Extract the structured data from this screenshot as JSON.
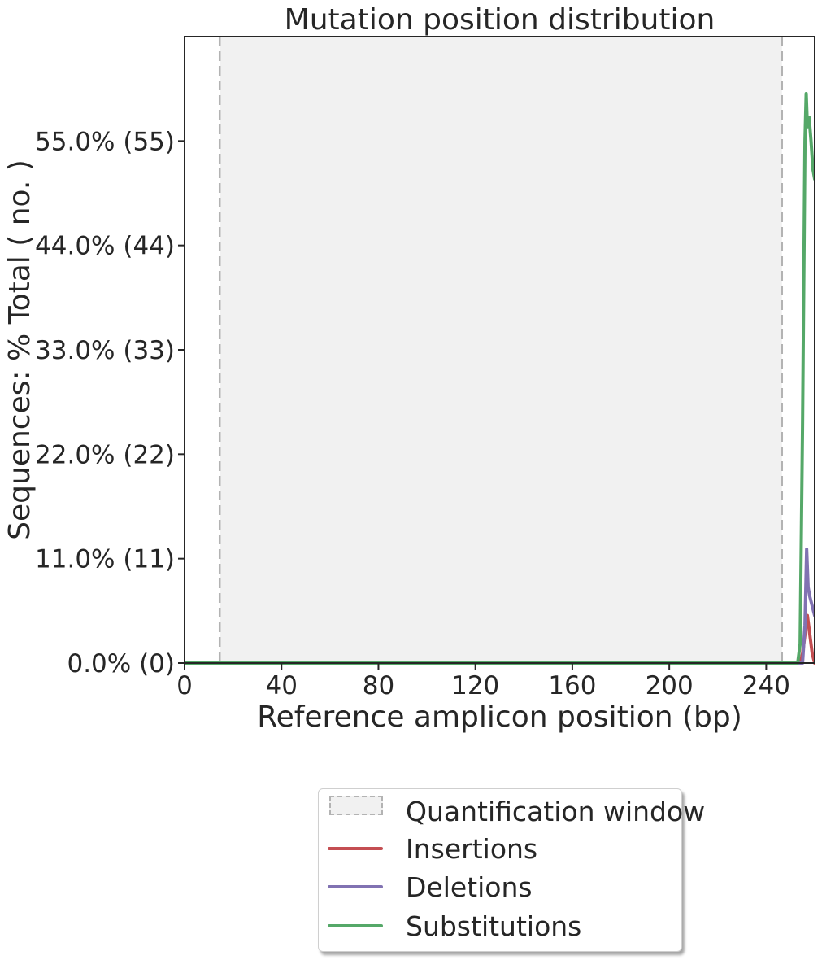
{
  "chart_data": {
    "type": "line",
    "title": "Mutation position distribution",
    "xlabel": "Reference amplicon position (bp)",
    "ylabel": "Sequences: % Total ( no. )",
    "xlim": [
      0,
      260
    ],
    "ylim": [
      0,
      66
    ],
    "xticks": [
      0,
      40,
      80,
      120,
      160,
      200,
      240
    ],
    "xtick_labels": [
      "0",
      "40",
      "80",
      "120",
      "160",
      "200",
      "240"
    ],
    "yticks": [
      0,
      11,
      22,
      33,
      44,
      55
    ],
    "ytick_labels": [
      "0.0% (0)",
      "11.0% (11)",
      "22.0% (22)",
      "33.0% (33)",
      "44.0% (44)",
      "55.0% (55)"
    ],
    "quantification_window": [
      14.5,
      246.5
    ],
    "grid": false,
    "legend_position": "below",
    "series": [
      {
        "name": "Insertions",
        "color": "#c44e52",
        "x": [
          0,
          253,
          254,
          255,
          256,
          257,
          258,
          259,
          260
        ],
        "y": [
          0,
          0,
          0,
          1,
          3,
          5,
          3,
          1,
          0
        ]
      },
      {
        "name": "Deletions",
        "color": "#8172b2",
        "x": [
          0,
          254,
          255,
          256,
          256.7,
          257.3,
          258,
          259,
          260
        ],
        "y": [
          0,
          0,
          0,
          4,
          12,
          8,
          7,
          6,
          5
        ]
      },
      {
        "name": "Substitutions",
        "color": "#55a868",
        "x": [
          0,
          253,
          254,
          255,
          256,
          256.5,
          257,
          257.7,
          258.5,
          259.3,
          260
        ],
        "y": [
          0,
          0,
          2,
          25,
          55,
          60,
          56.5,
          57.5,
          55,
          52,
          51
        ]
      }
    ],
    "legend": {
      "entries": [
        "Quantification window",
        "Insertions",
        "Deletions",
        "Substitutions"
      ],
      "window_color": "#f1f1f1",
      "window_edge": "#b3b3b3"
    }
  }
}
